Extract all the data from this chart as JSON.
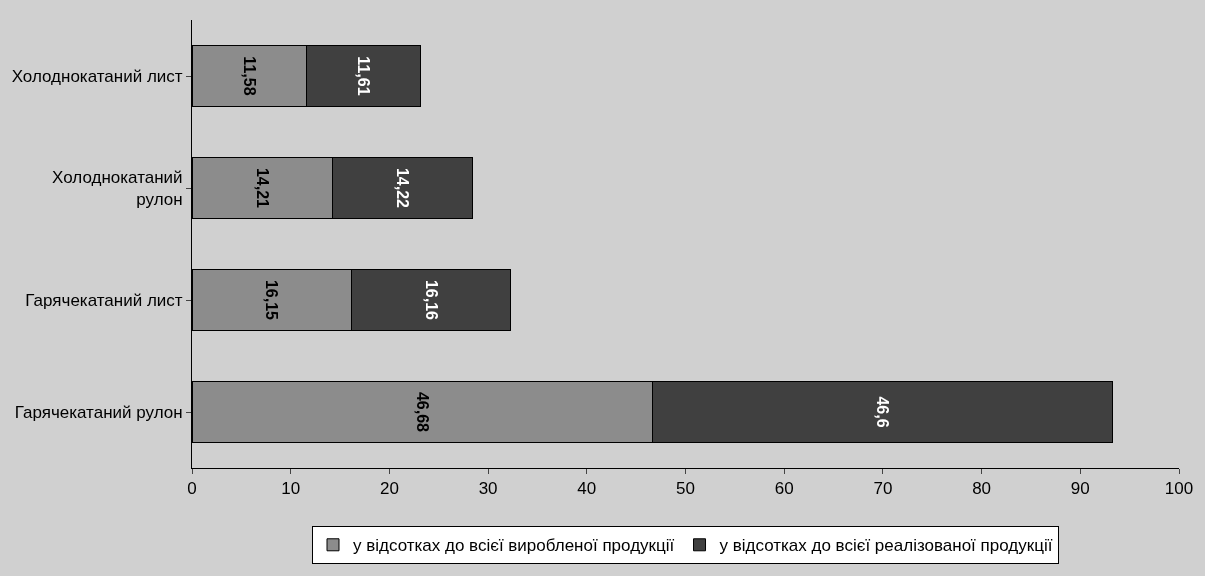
{
  "chart_data": {
    "type": "bar",
    "orientation": "horizontal",
    "stacked": true,
    "legend": "bottom",
    "categories": [
      "Холоднокатаний лист",
      "Холоднокатаний рулон",
      "Гарячекатаний лист",
      "Гарячекатаний рулон"
    ],
    "series": [
      {
        "name": "у відсотках до всієї виробленої продукції",
        "color": "#8c8c8c",
        "values": [
          11.58,
          14.21,
          16.15,
          46.68
        ],
        "value_labels": [
          "11,58",
          "14,21",
          "16,15",
          "46,68"
        ]
      },
      {
        "name": "у відсотках до всієї реалізованої продукції",
        "color": "#404040",
        "values": [
          11.61,
          14.22,
          16.16,
          46.6
        ],
        "value_labels": [
          "11,61",
          "14,22",
          "16,16",
          "46,6"
        ]
      }
    ],
    "xlim": [
      0,
      100
    ],
    "xticks": [
      0,
      10,
      20,
      30,
      40,
      50,
      60,
      70,
      80,
      90,
      100
    ]
  }
}
